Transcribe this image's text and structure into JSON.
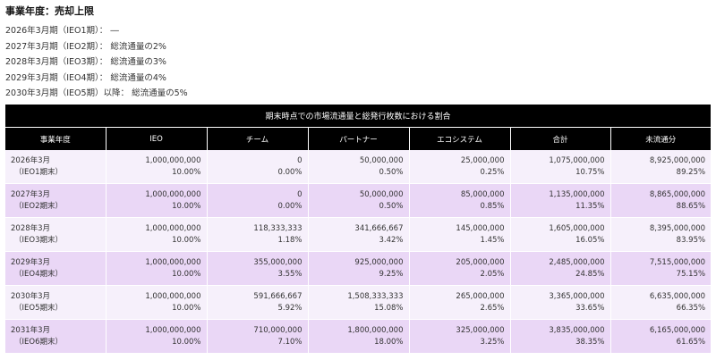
{
  "heading": "事業年度：売却上限",
  "limits": [
    "2026年3月期（IEO1期）： ―",
    "2027年3月期（IEO2期）： 総流通量の2%",
    "2028年3月期（IEO3期）： 総流通量の3%",
    "2029年3月期（IEO4期）： 総流通量の4%",
    "2030年3月期（IEO5期）以降： 総流通量の5%"
  ],
  "table": {
    "caption": "期末時点での市場流通量と総発行枚数における割合",
    "headers": [
      "事業年度",
      "IEO",
      "チーム",
      "パートナー",
      "エコシステム",
      "合計",
      "未流通分"
    ],
    "rows": [
      {
        "year": "2026年3月",
        "period": "（IEO1期末）",
        "cells": [
          [
            "1,000,000,000",
            "10.00%"
          ],
          [
            "0",
            "0.00%"
          ],
          [
            "50,000,000",
            "0.50%"
          ],
          [
            "25,000,000",
            "0.25%"
          ],
          [
            "1,075,000,000",
            "10.75%"
          ],
          [
            "8,925,000,000",
            "89.25%"
          ]
        ]
      },
      {
        "year": "2027年3月",
        "period": "（IEO2期末）",
        "cells": [
          [
            "1,000,000,000",
            "10.00%"
          ],
          [
            "0",
            "0.00%"
          ],
          [
            "50,000,000",
            "0.50%"
          ],
          [
            "85,000,000",
            "0.85%"
          ],
          [
            "1,135,000,000",
            "11.35%"
          ],
          [
            "8,865,000,000",
            "88.65%"
          ]
        ]
      },
      {
        "year": "2028年3月",
        "period": "（IEO3期末）",
        "cells": [
          [
            "1,000,000,000",
            "10.00%"
          ],
          [
            "118,333,333",
            "1.18%"
          ],
          [
            "341,666,667",
            "3.42%"
          ],
          [
            "145,000,000",
            "1.45%"
          ],
          [
            "1,605,000,000",
            "16.05%"
          ],
          [
            "8,395,000,000",
            "83.95%"
          ]
        ]
      },
      {
        "year": "2029年3月",
        "period": "（IEO4期末）",
        "cells": [
          [
            "1,000,000,000",
            "10.00%"
          ],
          [
            "355,000,000",
            "3.55%"
          ],
          [
            "925,000,000",
            "9.25%"
          ],
          [
            "205,000,000",
            "2.05%"
          ],
          [
            "2,485,000,000",
            "24.85%"
          ],
          [
            "7,515,000,000",
            "75.15%"
          ]
        ]
      },
      {
        "year": "2030年3月",
        "period": "（IEO5期末）",
        "cells": [
          [
            "1,000,000,000",
            "10.00%"
          ],
          [
            "591,666,667",
            "5.92%"
          ],
          [
            "1,508,333,333",
            "15.08%"
          ],
          [
            "265,000,000",
            "2.65%"
          ],
          [
            "3,365,000,000",
            "33.65%"
          ],
          [
            "6,635,000,000",
            "66.35%"
          ]
        ]
      },
      {
        "year": "2031年3月",
        "period": "（IEO6期末）",
        "cells": [
          [
            "1,000,000,000",
            "10.00%"
          ],
          [
            "710,000,000",
            "7.10%"
          ],
          [
            "1,800,000,000",
            "18.00%"
          ],
          [
            "325,000,000",
            "3.25%"
          ],
          [
            "3,835,000,000",
            "38.35%"
          ],
          [
            "6,165,000,000",
            "61.65%"
          ]
        ]
      }
    ]
  }
}
